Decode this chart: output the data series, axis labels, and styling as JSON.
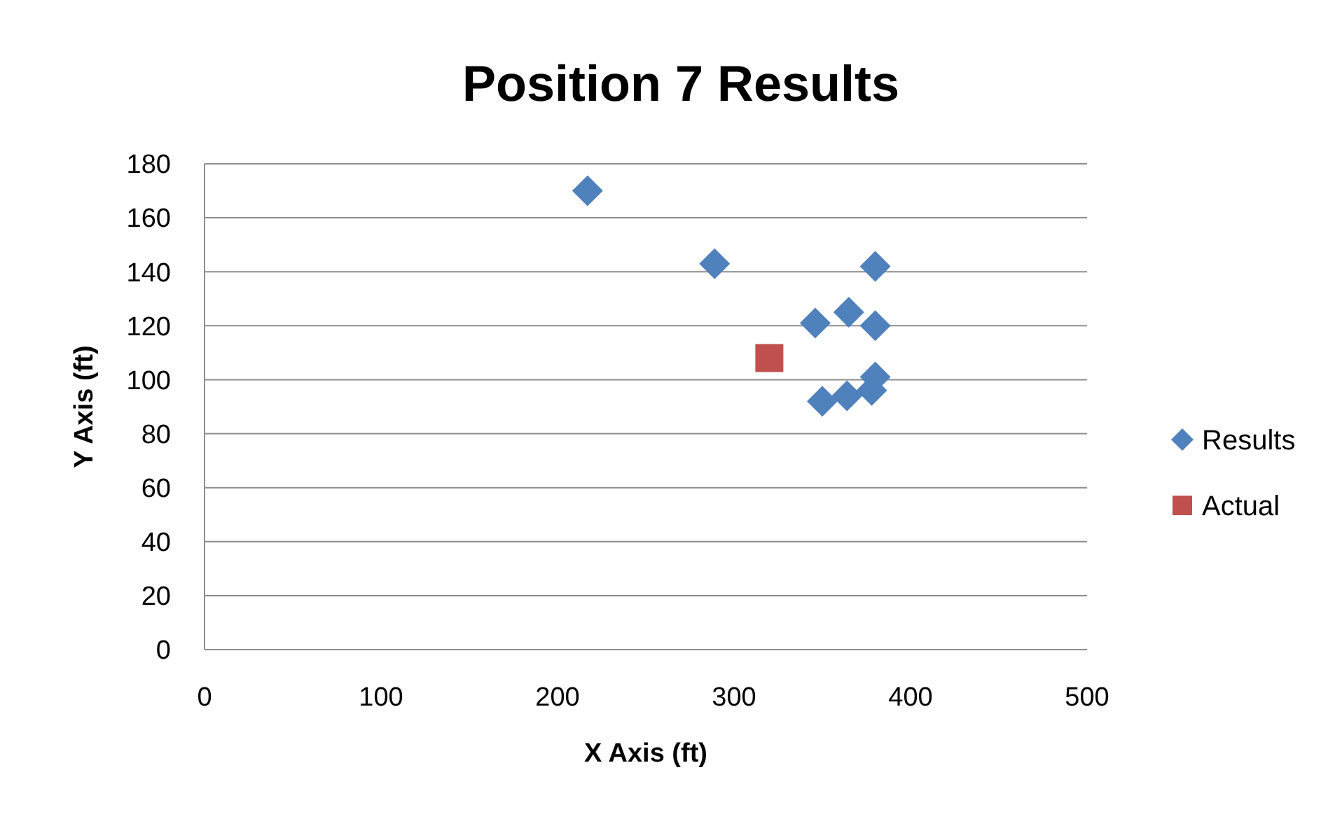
{
  "chart_data": {
    "type": "scatter",
    "title": "Position 7 Results",
    "xlabel": "X Axis (ft)",
    "ylabel": "Y Axis (ft)",
    "xlim": [
      0,
      500
    ],
    "xticks": [
      0,
      100,
      200,
      300,
      400,
      500
    ],
    "ylim": [
      0,
      180
    ],
    "yticks": [
      0,
      20,
      40,
      60,
      80,
      100,
      120,
      140,
      160,
      180
    ],
    "grid": "y",
    "legend": "right",
    "series": [
      {
        "name": "Results",
        "color": "#4f81bd",
        "marker": "diamond",
        "x": [
          217,
          289,
          380,
          346,
          365,
          380,
          380,
          350,
          364,
          378
        ],
        "values": [
          170,
          143,
          142,
          121,
          125,
          120,
          101,
          92,
          94,
          96
        ]
      },
      {
        "name": "Actual",
        "color": "#c0504d",
        "marker": "square",
        "x": [
          320
        ],
        "values": [
          108
        ]
      }
    ]
  }
}
